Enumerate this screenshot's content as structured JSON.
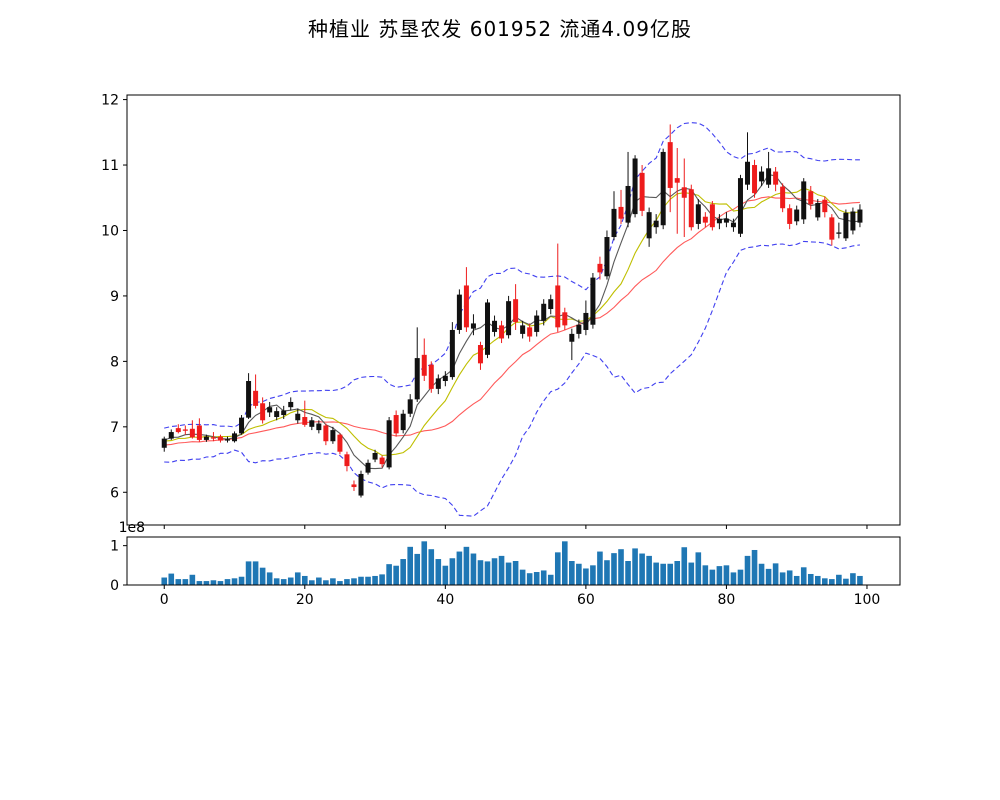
{
  "title": "种植业  苏垦农发  601952  流通4.09亿股",
  "chart_data": [
    {
      "type": "candlestick",
      "panel": "price",
      "title": "种植业  苏垦农发  601952  流通4.09亿股",
      "x_range": [
        -5.3,
        104.7
      ],
      "y_range": [
        5.5,
        12.07
      ],
      "y_ticks": [
        6,
        7,
        8,
        9,
        10,
        11,
        12
      ],
      "x_ticks": [
        0,
        20,
        40,
        60,
        80,
        100
      ],
      "grid": false,
      "legend": "none",
      "up_color": "#111111",
      "down_color": "#ee1c1c",
      "ohlc": [
        [
          6.68,
          6.85,
          6.62,
          6.82
        ],
        [
          6.82,
          6.96,
          6.8,
          6.92
        ],
        [
          6.98,
          7.04,
          6.9,
          6.92
        ],
        [
          6.96,
          7.02,
          6.88,
          6.94
        ],
        [
          6.97,
          7.1,
          6.82,
          6.84
        ],
        [
          7.02,
          7.13,
          6.77,
          6.8
        ],
        [
          6.8,
          6.88,
          6.77,
          6.85
        ],
        [
          6.84,
          6.92,
          6.78,
          6.82
        ],
        [
          6.85,
          6.88,
          6.76,
          6.79
        ],
        [
          6.79,
          6.85,
          6.76,
          6.81
        ],
        [
          6.78,
          6.93,
          6.76,
          6.9
        ],
        [
          6.9,
          7.18,
          6.88,
          7.14
        ],
        [
          7.14,
          7.82,
          7.12,
          7.7
        ],
        [
          7.55,
          7.8,
          7.28,
          7.32
        ],
        [
          7.36,
          7.45,
          7.05,
          7.1
        ],
        [
          7.22,
          7.38,
          7.15,
          7.3
        ],
        [
          7.15,
          7.3,
          7.1,
          7.24
        ],
        [
          7.18,
          7.32,
          7.12,
          7.25
        ],
        [
          7.3,
          7.45,
          7.25,
          7.38
        ],
        [
          7.1,
          7.28,
          7.05,
          7.2
        ],
        [
          7.15,
          7.4,
          7.0,
          7.03
        ],
        [
          7.0,
          7.15,
          6.95,
          7.1
        ],
        [
          6.95,
          7.1,
          6.9,
          7.05
        ],
        [
          7.02,
          7.05,
          6.72,
          6.78
        ],
        [
          6.78,
          7.0,
          6.74,
          6.95
        ],
        [
          6.88,
          6.9,
          6.58,
          6.62
        ],
        [
          6.58,
          6.62,
          6.32,
          6.4
        ],
        [
          6.12,
          6.18,
          6.02,
          6.08
        ],
        [
          5.95,
          6.33,
          5.92,
          6.28
        ],
        [
          6.3,
          6.5,
          6.27,
          6.45
        ],
        [
          6.5,
          6.65,
          6.46,
          6.6
        ],
        [
          6.53,
          6.56,
          6.38,
          6.43
        ],
        [
          6.38,
          7.15,
          6.35,
          7.1
        ],
        [
          7.18,
          7.25,
          6.85,
          6.9
        ],
        [
          6.95,
          7.26,
          6.9,
          7.2
        ],
        [
          7.2,
          7.5,
          7.15,
          7.42
        ],
        [
          7.42,
          8.52,
          7.38,
          8.05
        ],
        [
          8.1,
          8.35,
          7.7,
          7.78
        ],
        [
          7.95,
          8.0,
          7.52,
          7.58
        ],
        [
          7.58,
          7.8,
          7.5,
          7.74
        ],
        [
          7.7,
          7.85,
          7.62,
          7.78
        ],
        [
          7.76,
          8.6,
          7.72,
          8.48
        ],
        [
          8.48,
          9.1,
          8.42,
          9.02
        ],
        [
          9.16,
          9.44,
          8.45,
          8.52
        ],
        [
          8.5,
          8.72,
          8.4,
          8.58
        ],
        [
          8.25,
          8.3,
          7.87,
          7.97
        ],
        [
          8.1,
          8.95,
          8.05,
          8.9
        ],
        [
          8.45,
          8.7,
          8.38,
          8.62
        ],
        [
          8.55,
          8.62,
          8.28,
          8.35
        ],
        [
          8.4,
          9.0,
          8.35,
          8.92
        ],
        [
          8.95,
          9.18,
          8.48,
          8.6
        ],
        [
          8.42,
          8.62,
          8.35,
          8.55
        ],
        [
          8.52,
          8.58,
          8.3,
          8.38
        ],
        [
          8.45,
          8.78,
          8.38,
          8.7
        ],
        [
          8.62,
          8.95,
          8.55,
          8.88
        ],
        [
          8.8,
          9.02,
          8.72,
          8.95
        ],
        [
          9.16,
          9.8,
          8.45,
          8.52
        ],
        [
          8.75,
          8.82,
          8.48,
          8.55
        ],
        [
          8.3,
          8.5,
          8.02,
          8.42
        ],
        [
          8.42,
          8.64,
          8.35,
          8.56
        ],
        [
          8.48,
          8.93,
          8.4,
          8.74
        ],
        [
          8.56,
          9.35,
          8.5,
          9.28
        ],
        [
          9.49,
          9.6,
          9.25,
          9.36
        ],
        [
          9.3,
          10.0,
          9.25,
          9.9
        ],
        [
          9.9,
          10.6,
          9.85,
          10.33
        ],
        [
          10.36,
          10.62,
          10.1,
          10.18
        ],
        [
          10.12,
          11.2,
          10.05,
          10.68
        ],
        [
          10.25,
          11.15,
          10.2,
          11.1
        ],
        [
          10.88,
          11.0,
          10.22,
          10.3
        ],
        [
          9.88,
          10.35,
          9.75,
          10.28
        ],
        [
          10.05,
          10.25,
          9.95,
          10.15
        ],
        [
          10.08,
          11.25,
          10.02,
          11.2
        ],
        [
          11.35,
          11.62,
          10.28,
          10.65
        ],
        [
          10.8,
          11.26,
          9.95,
          10.73
        ],
        [
          10.66,
          11.1,
          9.9,
          10.5
        ],
        [
          10.63,
          10.7,
          10.0,
          10.05
        ],
        [
          10.1,
          10.48,
          10.02,
          10.4
        ],
        [
          10.21,
          10.28,
          10.05,
          10.12
        ],
        [
          10.4,
          10.45,
          10.0,
          10.05
        ],
        [
          10.11,
          10.25,
          10.02,
          10.18
        ],
        [
          10.12,
          10.28,
          10.05,
          10.18
        ],
        [
          10.05,
          10.18,
          9.98,
          10.12
        ],
        [
          9.95,
          10.85,
          9.9,
          10.8
        ],
        [
          10.7,
          11.5,
          10.62,
          11.05
        ],
        [
          11.0,
          11.08,
          10.5,
          10.57
        ],
        [
          10.75,
          10.98,
          10.68,
          10.9
        ],
        [
          10.7,
          11.2,
          10.65,
          10.95
        ],
        [
          10.9,
          10.97,
          10.6,
          10.7
        ],
        [
          10.67,
          10.72,
          10.28,
          10.34
        ],
        [
          10.34,
          10.4,
          10.02,
          10.1
        ],
        [
          10.14,
          10.38,
          10.08,
          10.32
        ],
        [
          10.17,
          10.8,
          10.1,
          10.75
        ],
        [
          10.6,
          10.68,
          10.32,
          10.4
        ],
        [
          10.2,
          10.48,
          10.15,
          10.42
        ],
        [
          10.47,
          10.52,
          10.2,
          10.28
        ],
        [
          10.2,
          10.25,
          9.77,
          9.86
        ],
        [
          9.95,
          10.12,
          9.88,
          9.97
        ],
        [
          9.88,
          10.32,
          9.84,
          10.27
        ],
        [
          10.0,
          10.35,
          9.94,
          10.29
        ],
        [
          10.12,
          10.4,
          10.05,
          10.32
        ]
      ],
      "overlays": [
        {
          "name": "ma5",
          "kind": "sma",
          "window": 5,
          "color": "#595959",
          "dash": false
        },
        {
          "name": "ma10",
          "kind": "sma",
          "window": 10,
          "color": "#bfbf00",
          "dash": false
        },
        {
          "name": "ma20",
          "kind": "sma",
          "window": 20,
          "color": "#ff5a5a",
          "dash": false
        },
        {
          "name": "bollinger",
          "kind": "bollinger",
          "window": 20,
          "mult": 2,
          "color": "#4040f0",
          "dash": true
        }
      ],
      "indicator_warmup_closes": [
        6.45,
        6.7,
        6.5,
        6.8,
        6.6,
        6.85,
        6.55,
        6.75,
        6.5,
        6.8,
        6.55,
        6.85,
        6.6,
        6.9,
        6.65,
        6.85,
        6.7,
        6.9,
        6.75,
        6.8
      ]
    },
    {
      "type": "bar",
      "panel": "volume",
      "offset_label": "1e8",
      "y_ticks": [
        0,
        1
      ],
      "y_range": [
        0,
        1.22
      ],
      "x_ticks": [
        0,
        20,
        40,
        60,
        80,
        100
      ],
      "bar_color": "#1f77b4",
      "values_e8": [
        0.19,
        0.29,
        0.15,
        0.15,
        0.26,
        0.1,
        0.1,
        0.12,
        0.1,
        0.15,
        0.17,
        0.21,
        0.6,
        0.6,
        0.44,
        0.32,
        0.17,
        0.15,
        0.19,
        0.32,
        0.23,
        0.12,
        0.19,
        0.12,
        0.17,
        0.1,
        0.15,
        0.17,
        0.21,
        0.21,
        0.23,
        0.27,
        0.53,
        0.49,
        0.66,
        0.97,
        0.79,
        1.11,
        0.91,
        0.66,
        0.49,
        0.68,
        0.85,
        0.97,
        0.8,
        0.63,
        0.6,
        0.68,
        0.74,
        0.57,
        0.61,
        0.39,
        0.3,
        0.33,
        0.37,
        0.26,
        0.83,
        1.11,
        0.61,
        0.54,
        0.42,
        0.5,
        0.85,
        0.63,
        0.81,
        0.91,
        0.61,
        0.93,
        0.8,
        0.74,
        0.57,
        0.54,
        0.54,
        0.61,
        0.96,
        0.57,
        0.83,
        0.5,
        0.39,
        0.48,
        0.5,
        0.32,
        0.39,
        0.74,
        0.89,
        0.54,
        0.41,
        0.55,
        0.32,
        0.37,
        0.23,
        0.45,
        0.28,
        0.23,
        0.17,
        0.15,
        0.26,
        0.16,
        0.3,
        0.23
      ]
    }
  ]
}
